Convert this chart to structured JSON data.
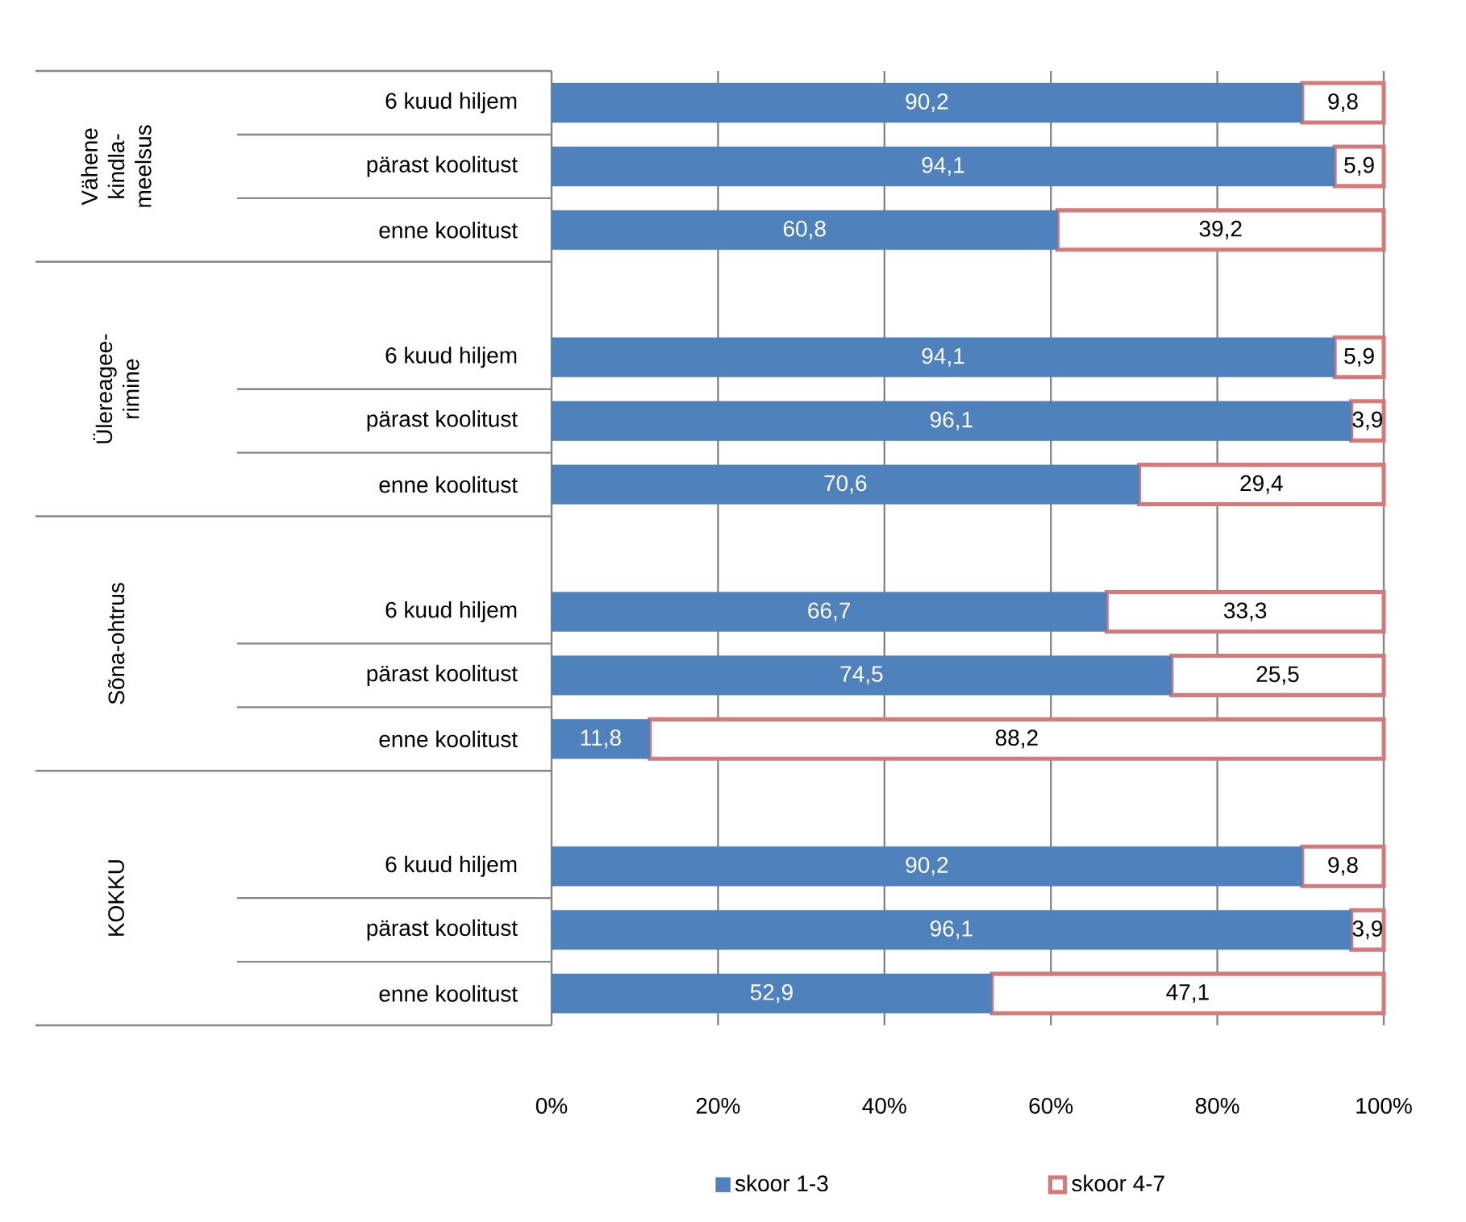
{
  "chart_data": {
    "type": "bar",
    "orientation": "horizontal",
    "stacked": true,
    "categories": [
      "6 kuud hiljem",
      "pärast koolitust",
      "enne koolitust",
      null,
      "6 kuud hiljem",
      "pärast koolitust",
      "enne koolitust",
      null,
      "6 kuud hiljem",
      "pärast koolitust",
      "enne koolitust",
      null,
      "6 kuud hiljem",
      "pärast koolitust",
      "enne koolitust"
    ],
    "annotations": [
      "Vähene kindla-meelsus",
      "Ülereagee-rimine",
      "Sõna-ohtrus",
      "KOKKU"
    ],
    "series": [
      {
        "name": "skoor 1-3",
        "color": "#4f81bd",
        "values": [
          90.2,
          94.1,
          60.8,
          null,
          94.1,
          96.1,
          70.6,
          null,
          66.7,
          74.5,
          11.8,
          null,
          90.2,
          96.1,
          52.9
        ],
        "value_labels": [
          "90,2",
          "94,1",
          "60,8",
          null,
          "94,1",
          "96,1",
          "70,6",
          null,
          "66,7",
          "74,5",
          "11,8",
          null,
          "90,2",
          "96,1",
          "52,9"
        ]
      },
      {
        "name": "skoor 4-7",
        "color": "#d47a7a",
        "values": [
          9.8,
          5.9,
          39.2,
          null,
          5.9,
          3.9,
          29.4,
          null,
          33.3,
          25.5,
          88.2,
          null,
          9.8,
          3.9,
          47.1
        ],
        "value_labels": [
          "9,8",
          "5,9",
          "39,2",
          null,
          "5,9",
          "3,9",
          "29,4",
          null,
          "33,3",
          "25,5",
          "88,2",
          null,
          "9,8",
          "3,9",
          "47,1"
        ]
      }
    ],
    "xlim": [
      0,
      100
    ],
    "xticks": [
      {
        "value": 0,
        "label": "0%"
      },
      {
        "value": 20,
        "label": "20%"
      },
      {
        "value": 40,
        "label": "40%"
      },
      {
        "value": 60,
        "label": "60%"
      },
      {
        "value": 80,
        "label": "80%"
      },
      {
        "value": 100,
        "label": "100%"
      }
    ],
    "grid": "x",
    "legend": "bottom"
  }
}
